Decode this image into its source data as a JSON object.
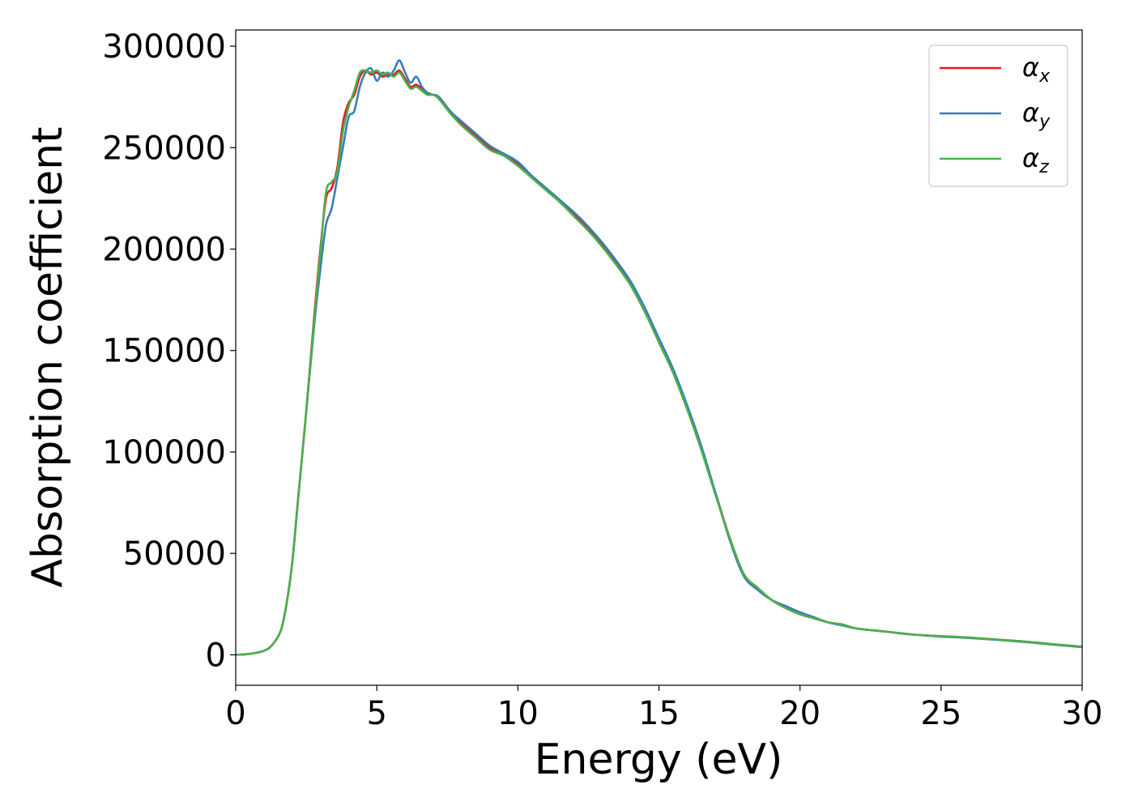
{
  "chart_data": {
    "type": "line",
    "title": "",
    "xlabel": "Energy (eV)",
    "ylabel": "Absorption coefficient",
    "xlim": [
      0,
      30
    ],
    "ylim": [
      -15000,
      308000
    ],
    "xticks": [
      0,
      5,
      10,
      15,
      20,
      25,
      30
    ],
    "xtick_labels": [
      "0",
      "5",
      "10",
      "15",
      "20",
      "25",
      "30"
    ],
    "yticks": [
      0,
      50000,
      100000,
      150000,
      200000,
      250000,
      300000
    ],
    "ytick_labels": [
      "0",
      "50000",
      "100000",
      "150000",
      "200000",
      "250000",
      "300000"
    ],
    "grid": false,
    "legend_position": "top-right",
    "colors": {
      "alpha_x": "#e41a1c",
      "alpha_y": "#377eb8",
      "alpha_z": "#4daf4a"
    },
    "series": [
      {
        "name": "αx",
        "symbol": "α",
        "subscript": "x",
        "color": "#e41a1c",
        "x": [
          0,
          0.5,
          1,
          1.3,
          1.6,
          1.8,
          2,
          2.2,
          2.5,
          2.8,
          3.0,
          3.2,
          3.4,
          3.6,
          3.8,
          4.0,
          4.2,
          4.4,
          4.6,
          4.8,
          5.0,
          5.2,
          5.4,
          5.6,
          5.8,
          6.0,
          6.2,
          6.4,
          6.6,
          6.8,
          7.0,
          7.2,
          7.6,
          8,
          8.5,
          9,
          9.5,
          10,
          10.5,
          11,
          11.5,
          12,
          12.5,
          13,
          13.5,
          14,
          14.5,
          15,
          15.5,
          16,
          16.5,
          17,
          17.5,
          18,
          18.5,
          19,
          19.5,
          20,
          20.5,
          21,
          21.5,
          22,
          23,
          24,
          25,
          26,
          27,
          28,
          29,
          30
        ],
        "y": [
          0,
          500,
          2000,
          5000,
          12000,
          25000,
          45000,
          75000,
          120000,
          170000,
          200000,
          225000,
          230000,
          240000,
          262000,
          272000,
          276000,
          285000,
          288000,
          286000,
          287000,
          285000,
          286000,
          286000,
          288000,
          284000,
          280000,
          281000,
          279000,
          277000,
          276000,
          275000,
          268000,
          262000,
          256000,
          250000,
          247000,
          242000,
          236000,
          230000,
          224000,
          217000,
          210000,
          202000,
          193000,
          183000,
          170000,
          155000,
          140000,
          122000,
          102000,
          80000,
          58000,
          40000,
          33000,
          27000,
          23000,
          20000,
          18000,
          16000,
          15000,
          13000,
          11500,
          10000,
          9200,
          8500,
          7500,
          6500,
          5200,
          4000
        ]
      },
      {
        "name": "αy",
        "symbol": "α",
        "subscript": "y",
        "color": "#377eb8",
        "x": [
          0,
          0.5,
          1,
          1.3,
          1.6,
          1.8,
          2,
          2.2,
          2.5,
          2.8,
          3.0,
          3.2,
          3.4,
          3.6,
          3.8,
          4.0,
          4.2,
          4.4,
          4.6,
          4.8,
          5.0,
          5.2,
          5.4,
          5.6,
          5.8,
          6.0,
          6.2,
          6.4,
          6.6,
          6.8,
          7.0,
          7.2,
          7.6,
          8,
          8.5,
          9,
          9.5,
          10,
          10.5,
          11,
          11.5,
          12,
          12.5,
          13,
          13.5,
          14,
          14.5,
          15,
          15.5,
          16,
          16.5,
          17,
          17.5,
          18,
          18.5,
          19,
          19.5,
          20,
          20.5,
          21,
          21.5,
          22,
          23,
          24,
          25,
          26,
          27,
          28,
          29,
          30
        ],
        "y": [
          0,
          500,
          2000,
          5000,
          12000,
          25000,
          45000,
          75000,
          120000,
          165000,
          190000,
          212000,
          220000,
          235000,
          250000,
          265000,
          268000,
          280000,
          287000,
          289000,
          283000,
          287000,
          285000,
          288000,
          293000,
          287000,
          282000,
          285000,
          280000,
          277000,
          276000,
          275000,
          268000,
          263000,
          257000,
          251000,
          247000,
          243000,
          236000,
          230000,
          224000,
          218000,
          211000,
          203000,
          194000,
          184000,
          171000,
          156000,
          141000,
          123000,
          103000,
          80000,
          57000,
          39000,
          32000,
          27000,
          24000,
          21000,
          18500,
          16000,
          14500,
          13000,
          11500,
          10000,
          9000,
          8300,
          7400,
          6300,
          5000,
          3800
        ]
      },
      {
        "name": "αz",
        "symbol": "α",
        "subscript": "z",
        "color": "#4daf4a",
        "x": [
          0,
          0.5,
          1,
          1.3,
          1.6,
          1.8,
          2,
          2.2,
          2.5,
          2.8,
          3.0,
          3.2,
          3.4,
          3.6,
          3.8,
          4.0,
          4.2,
          4.4,
          4.6,
          4.8,
          5.0,
          5.2,
          5.4,
          5.6,
          5.8,
          6.0,
          6.2,
          6.4,
          6.6,
          6.8,
          7.0,
          7.2,
          7.6,
          8,
          8.5,
          9,
          9.5,
          10,
          10.5,
          11,
          11.5,
          12,
          12.5,
          13,
          13.5,
          14,
          14.5,
          15,
          15.5,
          16,
          16.5,
          17,
          17.5,
          18,
          18.5,
          19,
          19.5,
          20,
          20.5,
          21,
          21.5,
          22,
          23,
          24,
          25,
          26,
          27,
          28,
          29,
          30
        ],
        "y": [
          0,
          500,
          2000,
          5000,
          12000,
          25000,
          45000,
          75000,
          120000,
          168000,
          198000,
          228000,
          233000,
          238000,
          258000,
          270000,
          278000,
          287000,
          288000,
          287000,
          288000,
          286000,
          287000,
          285000,
          287000,
          283000,
          279000,
          280000,
          278000,
          276000,
          276000,
          274000,
          267000,
          261000,
          255000,
          249000,
          246000,
          241000,
          235000,
          229000,
          223000,
          216000,
          209000,
          201000,
          192000,
          182000,
          169000,
          154000,
          139000,
          121000,
          101000,
          79000,
          58000,
          40000,
          33000,
          27000,
          23000,
          20000,
          18000,
          16000,
          15000,
          13000,
          11500,
          10000,
          9200,
          8500,
          7500,
          6500,
          5200,
          4000
        ]
      }
    ]
  }
}
